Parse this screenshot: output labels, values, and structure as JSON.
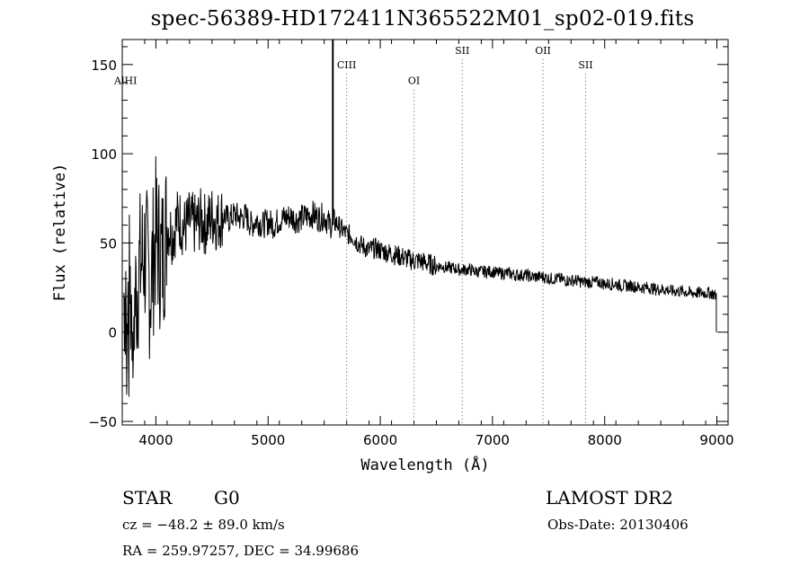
{
  "chart_data": {
    "type": "line",
    "title": "spec-56389-HD172411N365522M01_sp02-019.fits",
    "xlabel": "Wavelength (Å)",
    "ylabel": "Flux (relative)",
    "xlim": [
      3700,
      9100
    ],
    "ylim": [
      -52,
      164
    ],
    "x_ticks": [
      4000,
      5000,
      6000,
      7000,
      8000,
      9000
    ],
    "y_ticks": [
      -50,
      0,
      50,
      100,
      150
    ],
    "grid": false,
    "series": [
      {
        "x": [
          3700,
          3750,
          3800,
          3850,
          3900,
          3950,
          4000,
          4050,
          4100,
          4150,
          4200,
          4250,
          4300,
          4350,
          4400,
          4450,
          4500,
          4550,
          4600,
          4650,
          4700,
          4750,
          4800,
          4850,
          4900,
          4950,
          5000,
          5050,
          5100,
          5150,
          5200,
          5250,
          5300,
          5350,
          5400,
          5450,
          5500,
          5550,
          5600,
          5650,
          5700,
          5750,
          5800,
          5850,
          5900,
          5950,
          6000,
          6050,
          6100,
          6150,
          6200,
          6250,
          6300,
          6350,
          6400,
          6450,
          6500,
          6550,
          6600,
          6650,
          6700,
          6750,
          6800,
          6850,
          6900,
          6950,
          7000,
          7050,
          7100,
          7150,
          7200,
          7250,
          7300,
          7350,
          7400,
          7450,
          7500,
          7550,
          7600,
          7650,
          7700,
          7750,
          7800,
          7850,
          7900,
          7950,
          8000,
          8050,
          8100,
          8150,
          8200,
          8250,
          8300,
          8350,
          8400,
          8450,
          8500,
          8550,
          8600,
          8650,
          8700,
          8750,
          8800,
          8850,
          8900,
          8950,
          9000
        ],
        "y": [
          20,
          30,
          10,
          35,
          45,
          25,
          55,
          40,
          60,
          55,
          65,
          58,
          62,
          60,
          63,
          60,
          65,
          62,
          66,
          63,
          66,
          64,
          65,
          60,
          63,
          60,
          62,
          60,
          63,
          64,
          65,
          63,
          64,
          65,
          66,
          64,
          65,
          60,
          62,
          58,
          55,
          54,
          50,
          48,
          46,
          47,
          46,
          45,
          44,
          43,
          42,
          41,
          40,
          40,
          39,
          38,
          37,
          37,
          36,
          36,
          35,
          35,
          35,
          34,
          34,
          34,
          34,
          33,
          33,
          33,
          32,
          32,
          32,
          31,
          31,
          31,
          30,
          30,
          30,
          29,
          29,
          29,
          28,
          28,
          28,
          28,
          27,
          27,
          27,
          26,
          26,
          26,
          25,
          25,
          25,
          24,
          24,
          24,
          23,
          23,
          23,
          22,
          22,
          22,
          22,
          22,
          20
        ]
      }
    ],
    "spike": {
      "x": 5577,
      "y": 164
    },
    "lines": [
      {
        "label": "AlHI",
        "x": 3730,
        "label_y": 139,
        "dotted": false
      },
      {
        "label": "CIII",
        "x": 5700,
        "label_y": 148,
        "dotted": true
      },
      {
        "label": "OI",
        "x": 6300,
        "label_y": 139,
        "dotted": true
      },
      {
        "label": "SII",
        "x": 6730,
        "label_y": 156,
        "dotted": true
      },
      {
        "label": "OII",
        "x": 7450,
        "label_y": 156,
        "dotted": true
      },
      {
        "label": "SII",
        "x": 7830,
        "label_y": 148,
        "dotted": true
      }
    ]
  },
  "info": {
    "class_label": "STAR",
    "subclass": "G0",
    "survey": "LAMOST DR2",
    "cz": "cz = −48.2 ± 89.0 km/s",
    "obs_date": "Obs-Date: 20130406",
    "radec": "RA = 259.97257, DEC =  34.99686"
  }
}
